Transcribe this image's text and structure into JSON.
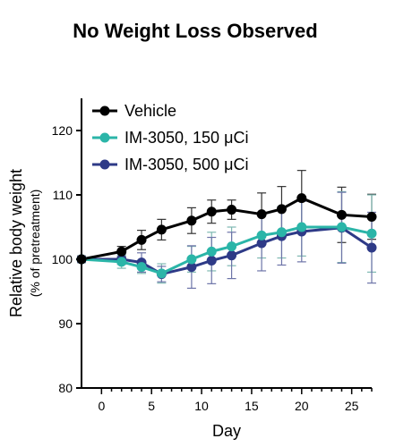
{
  "chart_data": {
    "type": "line",
    "title": "No Weight Loss Observed",
    "xlabel": "Day",
    "ylabel": "Relative body weight",
    "ylabel_sub": "(% of pretreatment)",
    "xlim": [
      -2,
      27
    ],
    "ylim": [
      80,
      125
    ],
    "xticks": [
      0,
      5,
      10,
      15,
      20,
      25
    ],
    "yticks": [
      80,
      90,
      100,
      110,
      120
    ],
    "grid": false,
    "legend_position": "top-left",
    "series": [
      {
        "name": "Vehicle",
        "color": "#000000",
        "x": [
          -2,
          2,
          4,
          6,
          9,
          11,
          13,
          16,
          18,
          20,
          24,
          27
        ],
        "y": [
          100,
          101.2,
          103,
          104.6,
          106,
          107.4,
          107.7,
          107,
          107.8,
          109.5,
          106.9,
          106.6
        ],
        "err": [
          0.5,
          0.8,
          1.5,
          1.6,
          2.0,
          1.8,
          1.5,
          3.3,
          3.5,
          4.3,
          4.3,
          3.5
        ]
      },
      {
        "name": "IM-3050, 150 μCi",
        "color": "#2bb5a8",
        "x": [
          -2,
          2,
          4,
          6,
          9,
          11,
          13,
          16,
          18,
          20,
          24,
          27
        ],
        "y": [
          100,
          99.6,
          98.8,
          97.8,
          100,
          101.2,
          102,
          103.7,
          104.2,
          105,
          105,
          104
        ],
        "err": [
          0.5,
          1.0,
          1.0,
          1.5,
          2.0,
          3.0,
          3.0,
          3.5,
          4.0,
          4.5,
          5.5,
          6.0
        ]
      },
      {
        "name": "IM-3050, 500 μCi",
        "color": "#2e3a87",
        "x": [
          -2,
          2,
          4,
          6,
          9,
          11,
          13,
          16,
          18,
          20,
          24,
          27
        ],
        "y": [
          100,
          100,
          99.5,
          97.7,
          98.8,
          99.8,
          100.6,
          102.5,
          103.6,
          104.3,
          104.9,
          101.8
        ],
        "err": [
          0.5,
          0.8,
          1.5,
          1.2,
          3.3,
          3.6,
          3.6,
          4.3,
          4.5,
          4.7,
          5.5,
          5.5
        ]
      }
    ]
  }
}
